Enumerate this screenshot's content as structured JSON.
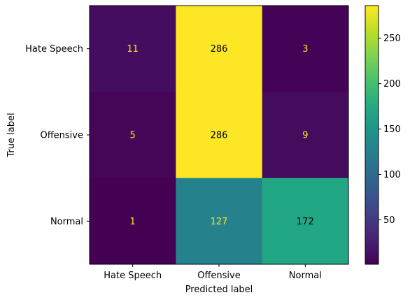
{
  "chart_data": {
    "type": "heatmap",
    "xlabel": "Predicted label",
    "ylabel": "True label",
    "x_categories": [
      "Hate Speech",
      "Offensive",
      "Normal"
    ],
    "y_categories": [
      "Hate Speech",
      "Offensive",
      "Normal"
    ],
    "matrix": [
      [
        11,
        286,
        3
      ],
      [
        5,
        286,
        9
      ],
      [
        1,
        127,
        172
      ]
    ],
    "colormap": "viridis",
    "colorbar": {
      "vmin": 1,
      "vmax": 286,
      "ticks": [
        50,
        100,
        150,
        200,
        250
      ]
    },
    "text_color_light": "#fde725",
    "text_color_dark": "#000000",
    "grid": false
  }
}
